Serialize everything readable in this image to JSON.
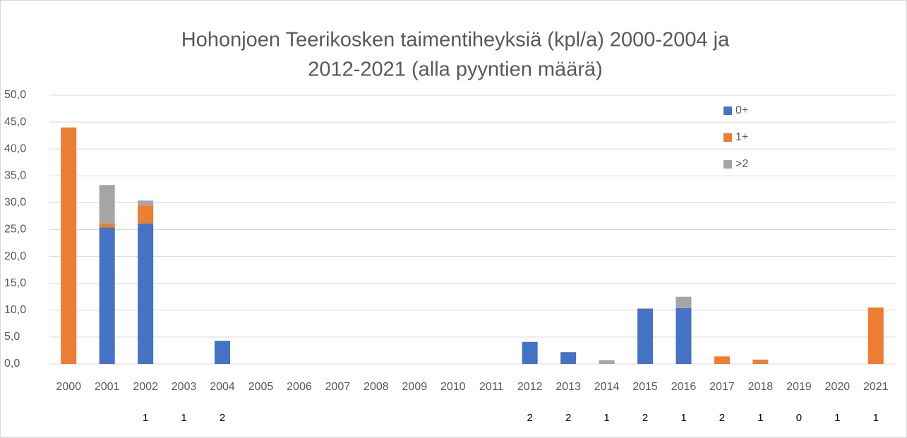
{
  "chart_data": {
    "type": "bar",
    "stacked": true,
    "title": [
      "Hohonjoen Teerikosken taimentiheyksiä (kpl/a) 2000-2004 ja",
      "2012-2021 (alla pyyntien määrä)"
    ],
    "categories": [
      "2000",
      "2001",
      "2002",
      "2003",
      "2004",
      "2005",
      "2006",
      "2007",
      "2008",
      "2009",
      "2010",
      "2011",
      "2012",
      "2013",
      "2014",
      "2015",
      "2016",
      "2017",
      "2018",
      "2019",
      "2020",
      "2021"
    ],
    "series": [
      {
        "name": "0+",
        "color": "#4472c4",
        "values": [
          0,
          25.4,
          26.1,
          0,
          4.3,
          0,
          0,
          0,
          0,
          0,
          0,
          0,
          4.1,
          2.2,
          0,
          10.3,
          10.4,
          0,
          0,
          0,
          0,
          0
        ]
      },
      {
        "name": "1+",
        "color": "#ed7d31",
        "values": [
          44.0,
          0.8,
          3.4,
          0,
          0,
          0,
          0,
          0,
          0,
          0,
          0,
          0,
          0,
          0,
          0,
          0,
          0,
          1.4,
          0.8,
          0,
          0,
          10.5
        ]
      },
      {
        "name": ">2",
        "color": "#a5a5a5",
        "values": [
          0,
          7.1,
          0.9,
          0,
          0,
          0,
          0,
          0,
          0,
          0,
          0,
          0,
          0,
          0,
          0.7,
          0,
          2.1,
          0,
          0,
          0,
          0,
          0
        ]
      }
    ],
    "catch_counts": [
      null,
      null,
      1,
      1,
      2,
      null,
      null,
      null,
      null,
      null,
      null,
      null,
      2,
      2,
      1,
      2,
      1,
      2,
      1,
      0,
      1,
      1
    ],
    "ylim": [
      0,
      50
    ],
    "yticks": [
      {
        "value": 0,
        "label": "0,0"
      },
      {
        "value": 5,
        "label": "5,0"
      },
      {
        "value": 10,
        "label": "10,0"
      },
      {
        "value": 15,
        "label": "15,0"
      },
      {
        "value": 20,
        "label": "20,0"
      },
      {
        "value": 25,
        "label": "25,0"
      },
      {
        "value": 30,
        "label": "30,0"
      },
      {
        "value": 35,
        "label": "35,0"
      },
      {
        "value": 40,
        "label": "40,0"
      },
      {
        "value": 45,
        "label": "45,0"
      },
      {
        "value": 50,
        "label": "50,0"
      }
    ],
    "grid": true,
    "legend": "upper right"
  }
}
